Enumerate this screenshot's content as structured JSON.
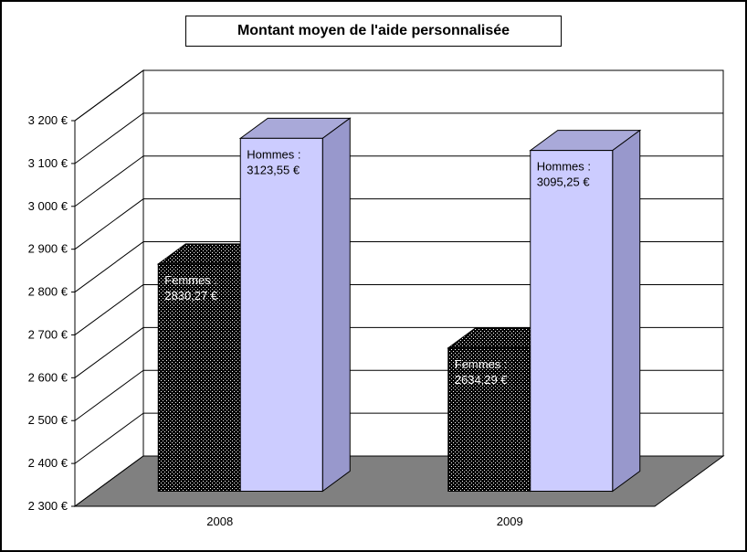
{
  "chart_data": {
    "type": "bar",
    "style": "3d-column",
    "title": "Montant moyen de l'aide personnalisée",
    "categories": [
      "2008",
      "2009"
    ],
    "series": [
      {
        "name": "Femmes",
        "color": "#000000",
        "pattern": "white-dots",
        "label_color": "#ffffff",
        "values": [
          2830.27,
          2634.29
        ],
        "labels": [
          [
            "Femmes :",
            "2830,27 €"
          ],
          [
            "Femmes :",
            "2634,29 €"
          ]
        ]
      },
      {
        "name": "Hommes",
        "color": "#ccccff",
        "top_color": "#a9a9d9",
        "side_color": "#9898cc",
        "label_color": "#000000",
        "values": [
          3123.55,
          3095.25
        ],
        "labels": [
          [
            "Hommes :",
            "3123,55 €"
          ],
          [
            "Hommes :",
            "3095,25 €"
          ]
        ]
      }
    ],
    "ylim": [
      2300,
      3200
    ],
    "ytick_step": 100,
    "ytick_labels": [
      "2 300 €",
      "2 400 €",
      "2 500 €",
      "2 600 €",
      "2 700 €",
      "2 800 €",
      "2 900 €",
      "3 000 €",
      "3 100 €",
      "3 200 €"
    ],
    "grid": true,
    "legend": "none",
    "wall_color": "#ffffff",
    "floor_color": "#808080",
    "axis_color": "#000000",
    "text_color": "#000000"
  }
}
